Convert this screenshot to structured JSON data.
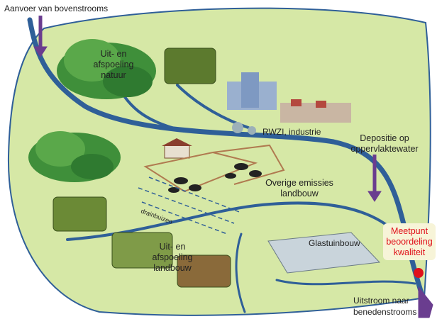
{
  "inflow": "Aanvoer van bovenstrooms",
  "nature_runoff": [
    "Uit- en",
    "afspoeling",
    "natuur"
  ],
  "wwtp": "RWZI, industrie",
  "deposition": [
    "Depositie op",
    "oppervlaktewater"
  ],
  "other_agriculture": [
    "Overige emissies",
    "landbouw"
  ],
  "drains": "drainbuizen",
  "greenhouse": "Glastuinbouw",
  "monitoring_point": [
    "Meetpunt",
    "beoordeling",
    "kwaliteit"
  ],
  "agriculture_runoff": [
    "Uit- en",
    "afspoeling",
    "landbouw"
  ],
  "outflow": [
    "Uitstroom naar",
    "benedenstrooms"
  ]
}
